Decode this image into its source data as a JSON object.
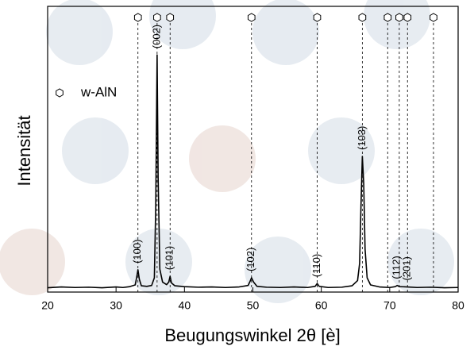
{
  "chart_data": {
    "type": "line",
    "xlabel": "Beugungswinkel 2θ [è]",
    "ylabel": "Intensität",
    "xlim": [
      20,
      80
    ],
    "xticks": [
      20,
      30,
      40,
      50,
      60,
      70,
      80
    ],
    "ylim": [
      0,
      100
    ],
    "color": "#000000",
    "x": [
      20,
      22,
      24,
      26,
      28,
      30,
      31,
      32,
      32.8,
      33.0,
      33.2,
      33.4,
      33.7,
      34.5,
      35.2,
      35.6,
      35.8,
      36.0,
      36.15,
      36.4,
      36.8,
      37.4,
      37.7,
      37.9,
      38.1,
      38.6,
      40,
      42,
      44,
      46,
      48,
      49.3,
      49.6,
      49.8,
      50.1,
      50.6,
      52,
      54,
      56,
      58,
      59.1,
      59.4,
      59.7,
      61,
      63,
      64.5,
      65.3,
      65.6,
      65.8,
      66.0,
      66.2,
      66.4,
      66.7,
      67.2,
      68.5,
      70,
      70.8,
      71.1,
      71.4,
      72.6,
      74,
      76,
      78,
      80
    ],
    "values": [
      1.5,
      1.8,
      1.6,
      1.7,
      1.5,
      1.8,
      1.6,
      1.9,
      2.5,
      5,
      7.8,
      4.5,
      2.2,
      2.0,
      2.3,
      5,
      30,
      83,
      40,
      8,
      3.5,
      2.6,
      3.5,
      5.5,
      3.2,
      2.2,
      1.9,
      1.7,
      1.8,
      1.6,
      1.8,
      2.3,
      3.8,
      5,
      3.5,
      2,
      1.7,
      1.6,
      1.8,
      1.6,
      2,
      3,
      2,
      1.6,
      1.7,
      2.2,
      4,
      10,
      30,
      47.5,
      38,
      15,
      5,
      2.5,
      1.8,
      1.6,
      1.9,
      2.3,
      1.9,
      1.8,
      1.6,
      1.7,
      1.5,
      1.6
    ],
    "reference": {
      "name": "w-AlN",
      "color": "#000000",
      "positions": [
        33.2,
        36.0,
        37.9,
        49.8,
        59.4,
        66.0,
        69.7,
        71.4,
        72.6,
        76.4
      ]
    },
    "legend_position": "upper left",
    "annotations": [
      {
        "text": "(100)",
        "x": 33.2
      },
      {
        "text": "(002)",
        "x": 36.0
      },
      {
        "text": "(101)",
        "x": 37.9
      },
      {
        "text": "(102)",
        "x": 49.8
      },
      {
        "text": "(110)",
        "x": 59.4
      },
      {
        "text": "(103)",
        "x": 66.0
      },
      {
        "text": "(112)",
        "x": 71.1
      },
      {
        "text": "(201)",
        "x": 72.6
      }
    ]
  }
}
